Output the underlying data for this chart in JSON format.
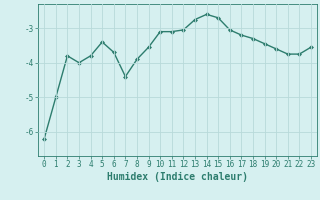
{
  "x": [
    0,
    1,
    2,
    3,
    4,
    5,
    6,
    7,
    8,
    9,
    10,
    11,
    12,
    13,
    14,
    15,
    16,
    17,
    18,
    19,
    20,
    21,
    22,
    23
  ],
  "y": [
    -6.2,
    -5.0,
    -3.8,
    -4.0,
    -3.8,
    -3.4,
    -3.7,
    -4.4,
    -3.9,
    -3.55,
    -3.1,
    -3.1,
    -3.05,
    -2.75,
    -2.6,
    -2.7,
    -3.05,
    -3.2,
    -3.3,
    -3.45,
    -3.6,
    -3.75,
    -3.75,
    -3.55
  ],
  "line_color": "#2d7d6e",
  "marker": "D",
  "marker_size": 2.0,
  "bg_color": "#d6f0f0",
  "grid_color": "#b8dada",
  "xlabel": "Humidex (Indice chaleur)",
  "yticks": [
    -6,
    -5,
    -4,
    -3
  ],
  "xtick_labels": [
    "0",
    "1",
    "2",
    "3",
    "4",
    "5",
    "6",
    "7",
    "8",
    "9",
    "10",
    "11",
    "12",
    "13",
    "14",
    "15",
    "16",
    "17",
    "18",
    "19",
    "20",
    "21",
    "22",
    "23"
  ],
  "xlim": [
    -0.5,
    23.5
  ],
  "ylim": [
    -6.7,
    -2.3
  ],
  "tick_color": "#2d7d6e",
  "font_size": 5.5,
  "xlabel_fontsize": 7,
  "line_width": 1.0
}
